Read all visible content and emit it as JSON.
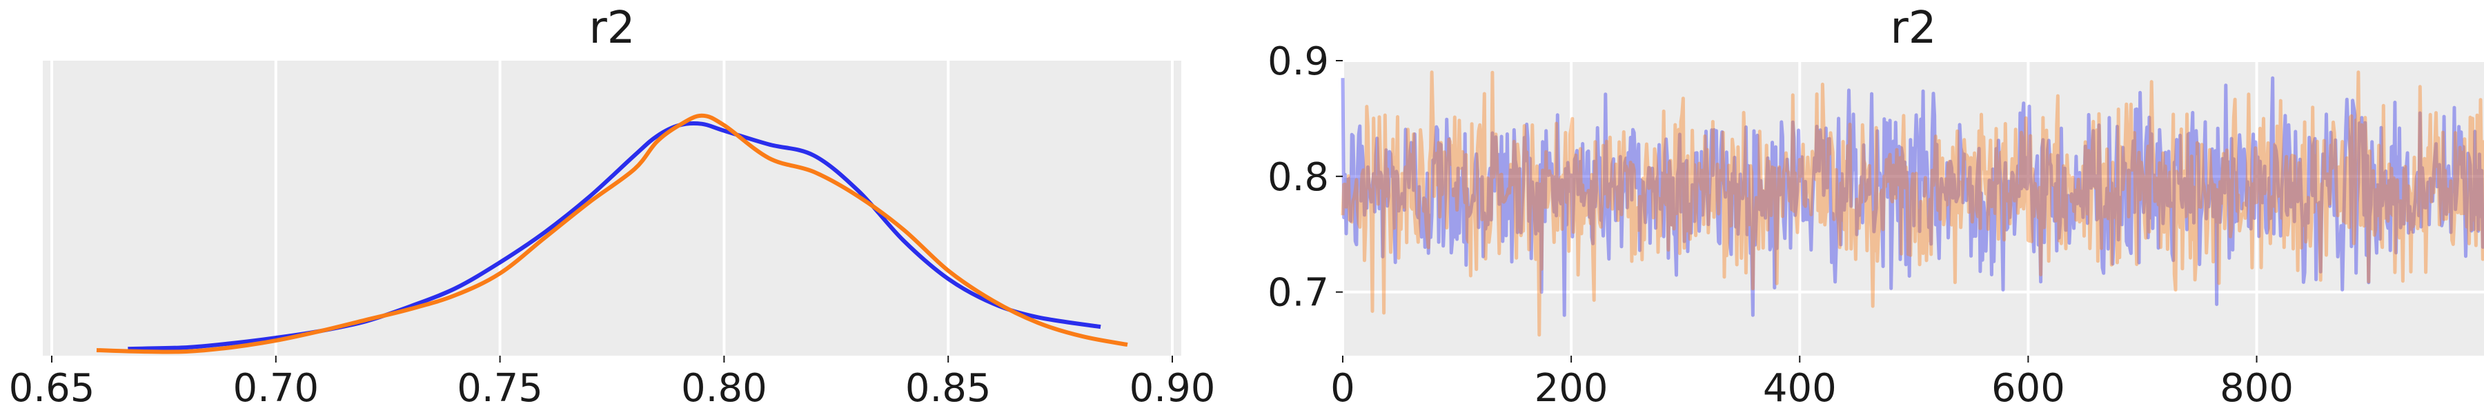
{
  "chart_data": [
    {
      "type": "line",
      "subtype": "kde",
      "title": "r2",
      "xlabel": "",
      "ylabel": "",
      "xlim": [
        0.648,
        0.902
      ],
      "xticks": [
        0.65,
        0.7,
        0.75,
        0.8,
        0.85,
        0.9
      ],
      "xtick_labels": [
        "0.65",
        "0.70",
        "0.75",
        "0.80",
        "0.85",
        "0.90"
      ],
      "yticks": [],
      "grid": true,
      "series": [
        {
          "color": "#2a2eec",
          "x": [
            0.667,
            0.68,
            0.69,
            0.7,
            0.71,
            0.72,
            0.73,
            0.74,
            0.75,
            0.76,
            0.77,
            0.78,
            0.785,
            0.79,
            0.795,
            0.8,
            0.81,
            0.82,
            0.83,
            0.84,
            0.85,
            0.86,
            0.87,
            0.884
          ],
          "y": [
            0.025,
            0.03,
            0.045,
            0.065,
            0.09,
            0.125,
            0.18,
            0.245,
            0.34,
            0.45,
            0.58,
            0.73,
            0.8,
            0.84,
            0.845,
            0.82,
            0.77,
            0.73,
            0.6,
            0.42,
            0.28,
            0.19,
            0.14,
            0.105
          ]
        },
        {
          "color": "#fa7c17",
          "x": [
            0.66,
            0.67,
            0.68,
            0.69,
            0.7,
            0.71,
            0.72,
            0.73,
            0.74,
            0.75,
            0.76,
            0.77,
            0.78,
            0.785,
            0.79,
            0.795,
            0.8,
            0.81,
            0.82,
            0.83,
            0.84,
            0.85,
            0.86,
            0.87,
            0.88,
            0.89
          ],
          "y": [
            0.02,
            0.015,
            0.015,
            0.03,
            0.055,
            0.09,
            0.13,
            0.17,
            0.22,
            0.3,
            0.43,
            0.56,
            0.68,
            0.78,
            0.84,
            0.875,
            0.84,
            0.72,
            0.67,
            0.58,
            0.46,
            0.31,
            0.2,
            0.12,
            0.07,
            0.04
          ]
        }
      ]
    },
    {
      "type": "line",
      "subtype": "trace",
      "title": "r2",
      "xlabel": "",
      "ylabel": "",
      "xlim": [
        0,
        999
      ],
      "ylim": [
        0.645,
        0.9
      ],
      "xticks": [
        0,
        200,
        400,
        600,
        800
      ],
      "xtick_labels": [
        "0",
        "200",
        "400",
        "600",
        "800"
      ],
      "yticks": [
        0.7,
        0.8,
        0.9
      ],
      "ytick_labels": [
        "0.7",
        "0.8",
        "0.9"
      ],
      "grid": true,
      "draws": 1000,
      "series": [
        {
          "color": "#2a2eec",
          "alpha": 0.4,
          "mean": 0.79,
          "sd": 0.035,
          "min": 0.68,
          "max": 0.885
        },
        {
          "color": "#fa7c17",
          "alpha": 0.4,
          "mean": 0.79,
          "sd": 0.035,
          "min": 0.66,
          "max": 0.89
        }
      ]
    }
  ]
}
